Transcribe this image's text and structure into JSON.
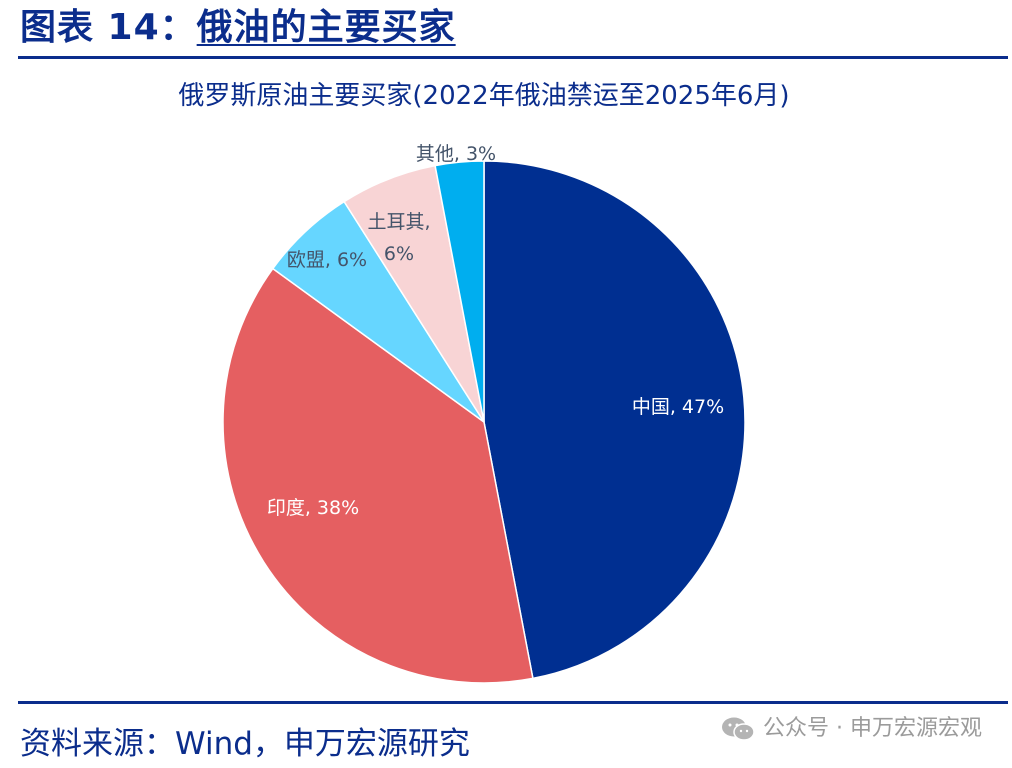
{
  "header": {
    "figure_label": "图表 14：",
    "title": "俄油的主要买家"
  },
  "chart_data": {
    "type": "pie",
    "title": "俄罗斯原油主要买家(2022年俄油禁运至2025年6月)",
    "start_angle_deg": 0,
    "direction": "clockwise",
    "slices": [
      {
        "label": "中国",
        "value": 47,
        "text": "中国, 47%",
        "color": "#002f91",
        "label_color": "#ffffff"
      },
      {
        "label": "印度",
        "value": 38,
        "text": "印度, 38%",
        "color": "#e55f61",
        "label_color": "#ffffff"
      },
      {
        "label": "欧盟",
        "value": 6,
        "text": "欧盟, 6%",
        "color": "#66d6ff",
        "label_color": "#44546a"
      },
      {
        "label": "土耳其",
        "value": 6,
        "text": "土耳其, 6%",
        "color": "#f8d4d5",
        "label_color": "#44546a"
      },
      {
        "label": "其他",
        "value": 3,
        "text": "其他, 3%",
        "color": "#00aeef",
        "label_color": "#44546a"
      }
    ]
  },
  "footer": {
    "source": "资料来源：Wind，申万宏源研究",
    "watermark": "公众号 · 申万宏源宏观",
    "watermark_icon": "wechat-icon"
  }
}
